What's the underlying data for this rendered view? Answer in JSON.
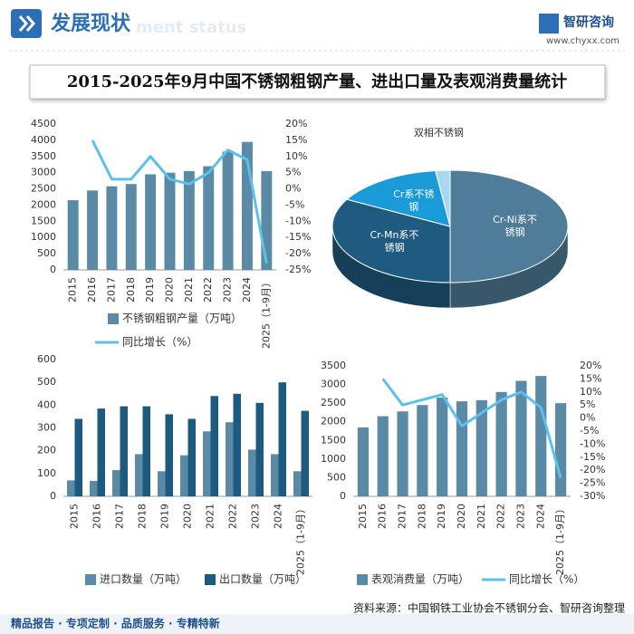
{
  "header": {
    "title": "发展现状",
    "subtitle": "ment status",
    "brand": "智研咨询",
    "url": "www.chyxx.com"
  },
  "main_title": "2015-2025年9月中国不锈钢粗钢产量、进出口量及表观消费量统计",
  "source": "资料来源：中国钢铁工业协会不锈钢分会、智研咨询整理",
  "footer": "精品报告 · 专项定制 · 品质服务 · 专精特新",
  "chart_data": [
    {
      "type": "bar_line",
      "categories": [
        "2015",
        "2016",
        "2017",
        "2018",
        "2019",
        "2020",
        "2021",
        "2022",
        "2023",
        "2024",
        "2025（1-9月）"
      ],
      "series": [
        {
          "name": "不锈钢粗钢产量（万吨）",
          "kind": "bar",
          "color": "#5a8aa6",
          "values": [
            2150,
            2450,
            2580,
            2650,
            2950,
            3000,
            3050,
            3200,
            3650,
            3950,
            3050
          ]
        },
        {
          "name": "同比增长（%）",
          "kind": "line",
          "axis": "y2",
          "color": "#5bc0eb",
          "values": [
            null,
            15,
            3,
            3,
            10,
            3,
            1.5,
            5,
            12,
            9,
            -23
          ]
        }
      ],
      "ylim": [
        0,
        4500
      ],
      "yticks": [
        0,
        500,
        1000,
        1500,
        2000,
        2500,
        3000,
        3500,
        4000,
        4500
      ],
      "y2lim": [
        -25,
        20
      ],
      "y2ticks": [
        {
          "value": -25,
          "label": "-25%"
        },
        {
          "value": -20,
          "label": "-20%"
        },
        {
          "value": -15,
          "label": "-15%"
        },
        {
          "value": -10,
          "label": "-10%"
        },
        {
          "value": -5,
          "label": "-5%"
        },
        {
          "value": 0,
          "label": "0%"
        },
        {
          "value": 5,
          "label": "5%"
        },
        {
          "value": 10,
          "label": "10%"
        },
        {
          "value": 15,
          "label": "15%"
        },
        {
          "value": 20,
          "label": "20%"
        }
      ],
      "legend": "bottom"
    },
    {
      "type": "pie3d",
      "categories": [
        "Cr-Ni系不锈钢",
        "Cr-Mn系不锈钢",
        "Cr系不锈钢",
        "双相不锈钢"
      ],
      "values": [
        50,
        33,
        15,
        2
      ],
      "colors": [
        "#4f7d99",
        "#1f5b80",
        "#1a9ad6",
        "#a8d8f0"
      ]
    },
    {
      "type": "grouped_bar",
      "categories": [
        "2015",
        "2016",
        "2017",
        "2018",
        "2019",
        "2020",
        "2021",
        "2022",
        "2023",
        "2024",
        "2025（1-9月）"
      ],
      "series": [
        {
          "name": "进口数量（万吨）",
          "color": "#5a8aa6",
          "values": [
            70,
            68,
            115,
            185,
            110,
            180,
            285,
            325,
            205,
            185,
            110
          ]
        },
        {
          "name": "出口数量（万吨）",
          "color": "#1c5a80",
          "values": [
            340,
            385,
            395,
            395,
            360,
            340,
            440,
            450,
            410,
            500,
            375
          ]
        }
      ],
      "ylim": [
        0,
        600
      ],
      "yticks": [
        0,
        100,
        200,
        300,
        400,
        500,
        600
      ],
      "legend": "bottom"
    },
    {
      "type": "bar_line",
      "categories": [
        "2015",
        "2016",
        "2017",
        "2018",
        "2019",
        "2020",
        "2021",
        "2022",
        "2023",
        "2024",
        "2025（1-9月）"
      ],
      "series": [
        {
          "name": "表观消费量（万吨）",
          "kind": "bar",
          "color": "#5a8aa6",
          "values": [
            1850,
            2150,
            2280,
            2450,
            2650,
            2550,
            2580,
            2800,
            3100,
            3230,
            2500
          ]
        },
        {
          "name": "同比增长（%）",
          "kind": "line",
          "axis": "y2",
          "color": "#5bc0eb",
          "values": [
            null,
            15,
            5,
            7,
            9,
            -3,
            2,
            7,
            10,
            4,
            -23
          ]
        }
      ],
      "ylim": [
        0,
        3500
      ],
      "yticks": [
        0,
        500,
        1000,
        1500,
        2000,
        2500,
        3000,
        3500
      ],
      "y2lim": [
        -30,
        20
      ],
      "y2ticks": [
        {
          "value": -30,
          "label": "-30%"
        },
        {
          "value": -25,
          "label": "-25%"
        },
        {
          "value": -20,
          "label": "-20%"
        },
        {
          "value": -15,
          "label": "-15%"
        },
        {
          "value": -10,
          "label": "-10%"
        },
        {
          "value": -5,
          "label": "-5%"
        },
        {
          "value": 0,
          "label": "0%"
        },
        {
          "value": 5,
          "label": "5%"
        },
        {
          "value": 10,
          "label": "10%"
        },
        {
          "value": 15,
          "label": "15%"
        },
        {
          "value": 20,
          "label": "20%"
        }
      ],
      "legend": "bottom"
    }
  ]
}
